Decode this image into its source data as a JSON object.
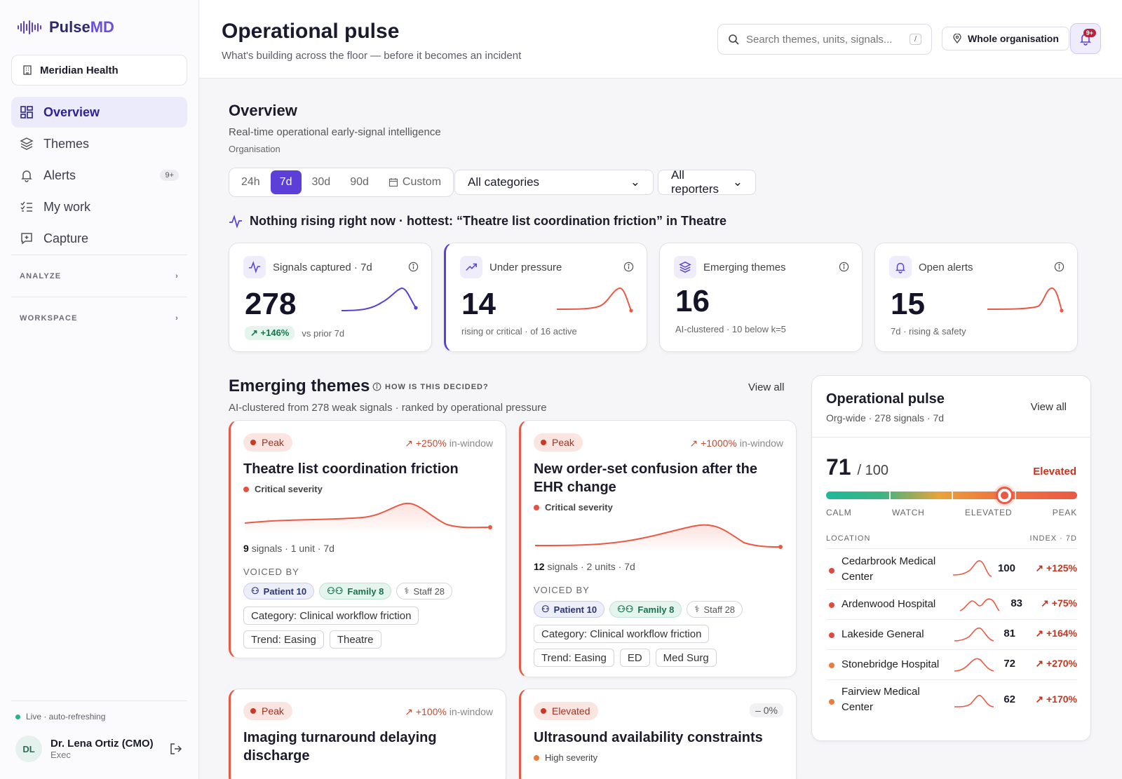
{
  "brand": {
    "name_a": "Pulse",
    "name_b": "MD"
  },
  "org": "Meridian Health",
  "nav": [
    {
      "label": "Overview"
    },
    {
      "label": "Themes"
    },
    {
      "label": "Alerts",
      "badge": "9+"
    },
    {
      "label": "My work"
    },
    {
      "label": "Capture"
    }
  ],
  "sections": [
    "ANALYZE",
    "WORKSPACE"
  ],
  "footer": {
    "live": "Live · auto-refreshing",
    "initials": "DL",
    "name": "Dr. Lena Ortiz (CMO)",
    "role": "Exec"
  },
  "header": {
    "title": "Operational pulse",
    "subtitle": "What's building across the floor — before it becomes an incident",
    "search_placeholder": "Search themes, units, signals...",
    "search_kbd": "/",
    "scope": "Whole organisation",
    "bell_badge": "9+"
  },
  "overview": {
    "title": "Overview",
    "subtitle": "Real-time operational early-signal intelligence",
    "org_label": "Organisation",
    "ranges": [
      "24h",
      "7d",
      "30d",
      "90d",
      "Custom"
    ],
    "active_range": "7d",
    "category_select": "All categories",
    "reporter_select": "All reporters",
    "hottest": "Nothing rising right now · hottest: “Theatre list coordination friction” in Theatre"
  },
  "kpis": [
    {
      "label": "Signals captured · 7d",
      "value": "278",
      "delta": "+146%",
      "foot": "vs prior 7d",
      "color": "#5b3fd6"
    },
    {
      "label": "Under pressure",
      "value": "14",
      "foot": "rising or critical · of 16 active",
      "color": "#e95a45"
    },
    {
      "label": "Emerging themes",
      "value": "16",
      "foot": "AI-clustered · 10 below k=5"
    },
    {
      "label": "Open alerts",
      "value": "15",
      "foot": "7d · rising & safety",
      "color": "#e95a45"
    }
  ],
  "emerging": {
    "title": "Emerging themes",
    "how": "HOW IS THIS DECIDED?",
    "view_all": "View all",
    "subtitle": "AI-clustered from 278 weak signals · ranked by operational pressure",
    "voiced_label": "VOICED BY",
    "cards": [
      {
        "status": "Peak",
        "trend": "+250%",
        "trend_suffix": "in-window",
        "title": "Theatre list coordination friction",
        "severity": "Critical severity",
        "signals": "9",
        "meta": "signals · 1 unit · 7d",
        "patient": "Patient 10",
        "family": "Family 8",
        "staff": "Staff 28",
        "tags": [
          "Category: Clinical workflow friction",
          "Trend: Easing",
          "Theatre"
        ]
      },
      {
        "status": "Peak",
        "trend": "+1000%",
        "trend_suffix": "in-window",
        "title": "New order-set confusion after the EHR change",
        "severity": "Critical severity",
        "signals": "12",
        "meta": "signals · 2 units · 7d",
        "patient": "Patient 10",
        "family": "Family 8",
        "staff": "Staff 28",
        "tags": [
          "Category: Clinical workflow friction",
          "Trend: Easing",
          "ED",
          "Med Surg"
        ]
      },
      {
        "status": "Peak",
        "trend": "+100%",
        "trend_suffix": "in-window",
        "title": "Imaging turnaround delaying discharge"
      },
      {
        "status": "Elevated",
        "trend": "– 0%",
        "title": "Ultrasound availability constraints",
        "severity": "High severity"
      }
    ]
  },
  "pulse": {
    "title": "Operational pulse",
    "subtitle": "Org-wide · 278 signals · 7d",
    "view_all": "View all",
    "score": "71",
    "score_max": "/ 100",
    "score_value": 71,
    "level": "Elevated",
    "scale": [
      "CALM",
      "WATCH",
      "ELEVATED",
      "PEAK"
    ],
    "loc_header": "LOCATION",
    "idx_header": "INDEX · 7D",
    "locations": [
      {
        "name": "Cedarbrook Medical Center",
        "index": "100",
        "change": "↗ +125%"
      },
      {
        "name": "Ardenwood Hospital",
        "index": "83",
        "change": "↗ +75%"
      },
      {
        "name": "Lakeside General",
        "index": "81",
        "change": "↗ +164%"
      },
      {
        "name": "Stonebridge Hospital",
        "index": "72",
        "change": "↗ +270%"
      },
      {
        "name": "Fairview Medical Center",
        "index": "62",
        "change": "↗ +170%"
      }
    ]
  }
}
